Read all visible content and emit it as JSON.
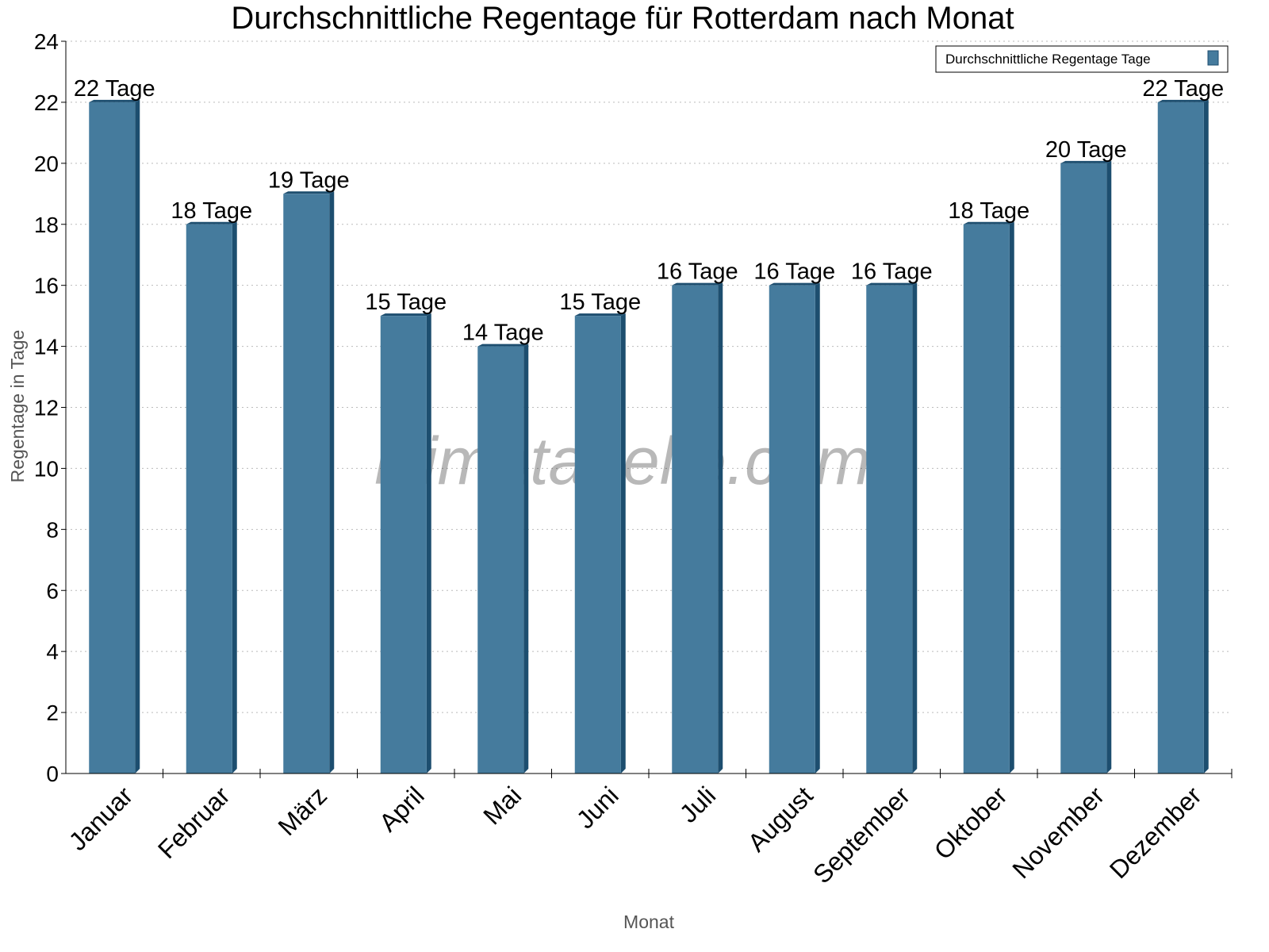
{
  "chart_data": {
    "type": "bar",
    "title": "Durchschnittliche Regentage für Rotterdam nach Monat",
    "xlabel": "Monat",
    "ylabel": "Regentage in Tage",
    "ylim": [
      0,
      24
    ],
    "yticks": [
      0,
      2,
      4,
      6,
      8,
      10,
      12,
      14,
      16,
      18,
      20,
      22,
      24
    ],
    "grid": true,
    "legend": {
      "position": "top-right",
      "entries": [
        "Durchschnittliche Regentage Tage"
      ]
    },
    "categories": [
      "Januar",
      "Februar",
      "März",
      "April",
      "Mai",
      "Juni",
      "Juli",
      "August",
      "September",
      "Oktober",
      "November",
      "Dezember"
    ],
    "values": [
      22,
      18,
      19,
      15,
      14,
      15,
      16,
      16,
      16,
      18,
      20,
      22
    ],
    "labels": [
      "22 Tage",
      "18 Tage",
      "19 Tage",
      "15 Tage",
      "14 Tage",
      "15 Tage",
      "16 Tage",
      "16 Tage",
      "16 Tage",
      "18 Tage",
      "20 Tage",
      "22 Tage"
    ],
    "watermark": "klimatabelle.com",
    "colors": {
      "bar": "#457b9d",
      "bar_dark": "#1d4e6f"
    }
  }
}
